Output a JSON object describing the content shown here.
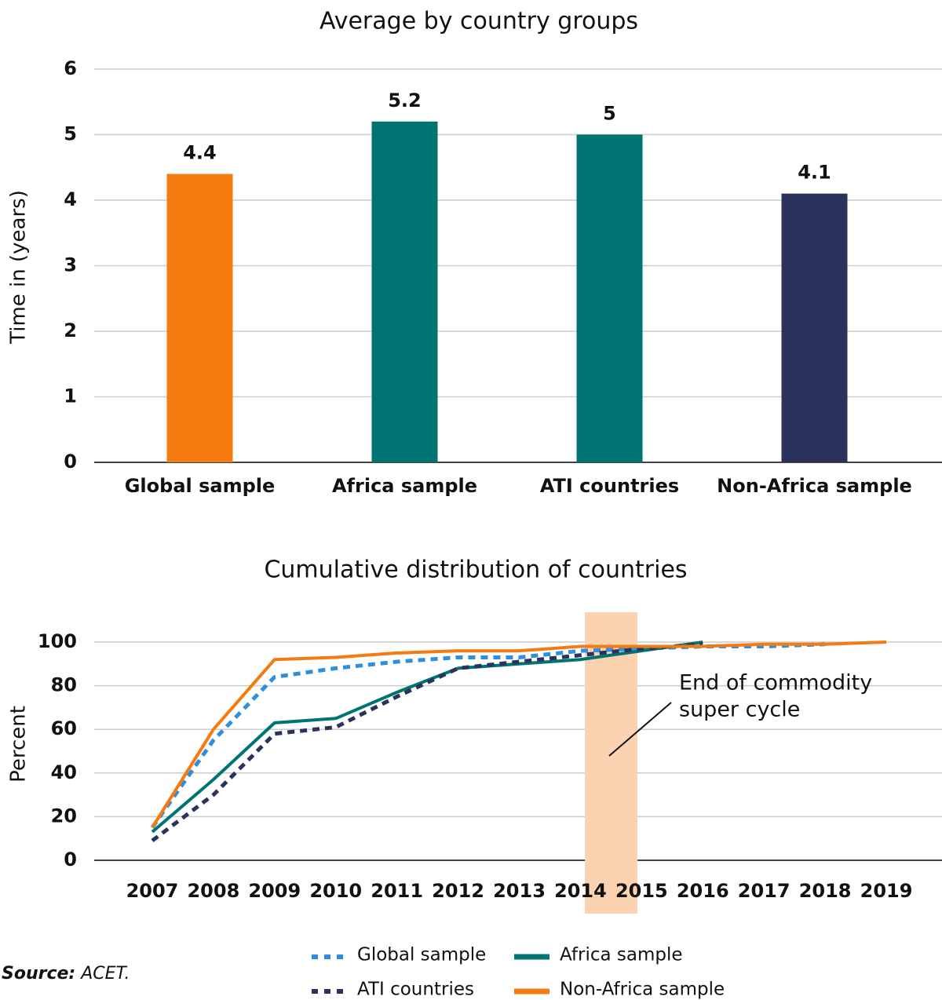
{
  "chart_data": [
    {
      "type": "bar",
      "title": "Average by country groups",
      "y_label": "Time in (years)",
      "categories": [
        "Global sample",
        "Africa sample",
        "ATI countries",
        "Non-Africa sample"
      ],
      "values": [
        4.4,
        5.2,
        5,
        4.1
      ],
      "colors": [
        "#f57a0f",
        "#007472",
        "#007472",
        "#2b335d"
      ],
      "ylim": [
        0,
        6
      ],
      "yticks": [
        0,
        1,
        2,
        3,
        4,
        5,
        6
      ],
      "grid": true
    },
    {
      "type": "line",
      "title": "Cumulative distribution of countries",
      "y_label": "Percent",
      "categories": [
        "2007",
        "2008",
        "2009",
        "2010",
        "2011",
        "2012",
        "2013",
        "2014",
        "2015",
        "2016",
        "2017",
        "2018",
        "2019"
      ],
      "series": [
        {
          "name": "Global sample",
          "color": "#2e8fe0",
          "dashed": true,
          "values": [
            15,
            55,
            84,
            88,
            91,
            93,
            93,
            96,
            97,
            98,
            98,
            99,
            null
          ]
        },
        {
          "name": "Africa sample",
          "color": "#007472",
          "dashed": false,
          "values": [
            13,
            37,
            63,
            65,
            77,
            88,
            90,
            92,
            96,
            100,
            null,
            null,
            null
          ]
        },
        {
          "name": "ATI countries",
          "color": "#2b335d",
          "dashed": true,
          "values": [
            9,
            30,
            58,
            61,
            75,
            88,
            91,
            94,
            97,
            99,
            null,
            null,
            null
          ]
        },
        {
          "name": "Non-Africa sample",
          "color": "#f57a0f",
          "dashed": false,
          "values": [
            15,
            60,
            92,
            93,
            95,
            96,
            96,
            98,
            98,
            98,
            99,
            99,
            100
          ]
        }
      ],
      "annotation": [
        "End of commodity",
        "super cycle"
      ],
      "ylim": [
        0,
        100
      ],
      "yticks": [
        0,
        20,
        40,
        60,
        80,
        100
      ],
      "grid": true
    }
  ],
  "source": {
    "label": "Source:",
    "text": "ACET."
  }
}
